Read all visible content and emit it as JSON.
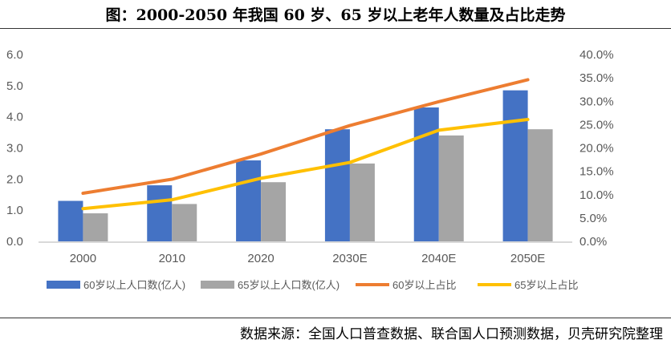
{
  "title": "图：2000-2050 年我国 60 岁、65 岁以上老年人数量及占比走势",
  "source": "数据来源：全国人口普查数据、联合国人口预测数据，贝壳研究院整理",
  "chart_data": {
    "type": "bar+line",
    "categories": [
      "2000",
      "2010",
      "2020",
      "2030E",
      "2040E",
      "2050E"
    ],
    "ylim": [
      0,
      6
    ],
    "y_ticks": [
      "0.0",
      "1.0",
      "2.0",
      "3.0",
      "4.0",
      "5.0",
      "6.0"
    ],
    "y2lim": [
      0,
      40
    ],
    "y2_ticks": [
      "0.0%",
      "5.0%",
      "10.0%",
      "15.0%",
      "20.0%",
      "25.0%",
      "30.0%",
      "35.0%",
      "40.0%"
    ],
    "grid": false,
    "legend": "bottom",
    "series": [
      {
        "name": "60岁以上人口数(亿人)",
        "type": "bar",
        "axis": "left",
        "color": "#4472C4",
        "values": [
          1.3,
          1.8,
          2.6,
          3.6,
          4.3,
          4.85
        ]
      },
      {
        "name": "65岁以上人口数(亿人)",
        "type": "bar",
        "axis": "left",
        "color": "#A5A5A5",
        "values": [
          0.9,
          1.2,
          1.9,
          2.5,
          3.4,
          3.6
        ]
      },
      {
        "name": "60岁以上占比",
        "type": "line",
        "axis": "right",
        "color": "#ED7D31",
        "values": [
          10.3,
          13.3,
          18.7,
          24.8,
          29.9,
          34.6
        ]
      },
      {
        "name": "65岁以上占比",
        "type": "line",
        "axis": "right",
        "color": "#FFC000",
        "values": [
          7.0,
          8.9,
          13.5,
          16.9,
          23.8,
          26.1
        ]
      }
    ]
  }
}
